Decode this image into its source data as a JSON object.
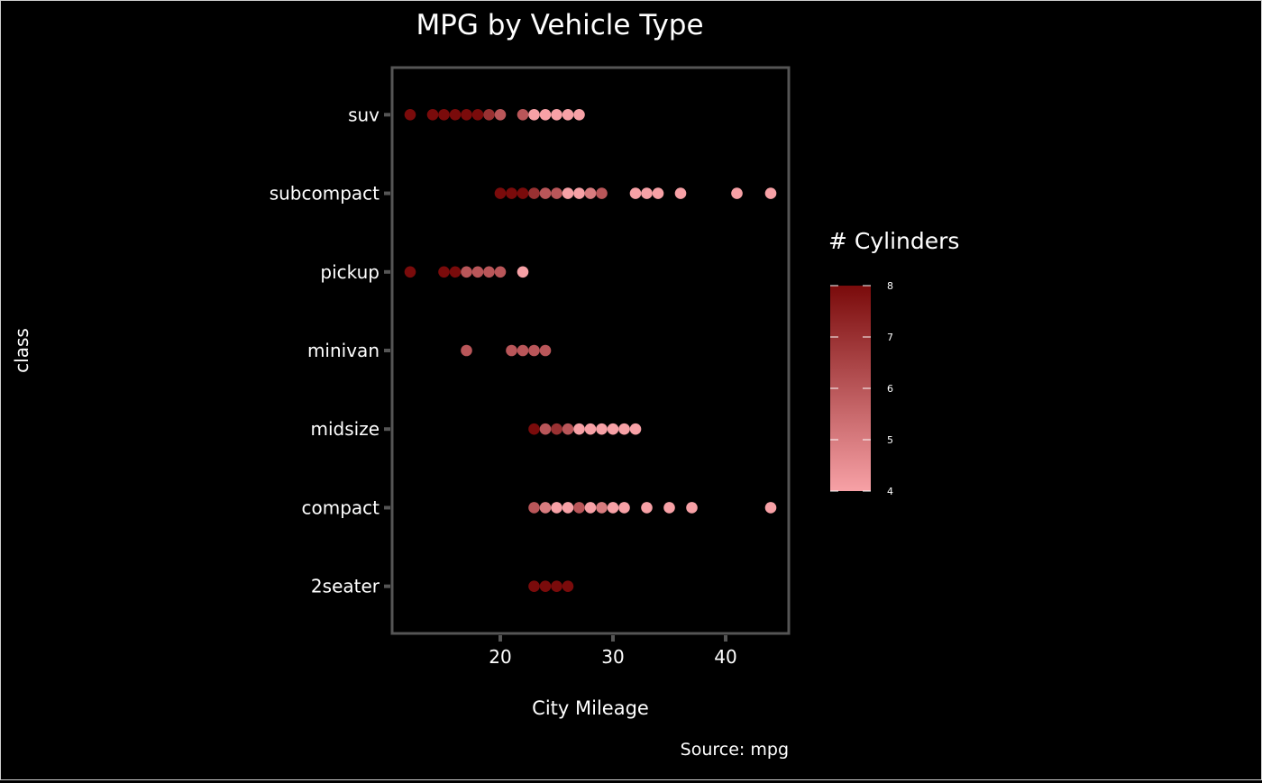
{
  "chart_data": {
    "type": "scatter",
    "title": "MPG by Vehicle Type",
    "caption": "Source: mpg",
    "xlabel": "City Mileage",
    "ylabel": "class",
    "xlim": [
      10.4,
      45.6
    ],
    "x_ticks": [
      20,
      30,
      40
    ],
    "categories": [
      "2seater",
      "compact",
      "midsize",
      "minivan",
      "pickup",
      "subcompact",
      "suv"
    ],
    "grid": false,
    "legend": {
      "title": "# Cylinders",
      "placement": "right",
      "range": [
        4,
        8
      ],
      "ticks": [
        4,
        5,
        6,
        7,
        8
      ],
      "low_color": "#f7a1a6",
      "high_color": "#7a0b0b"
    },
    "points": [
      {
        "class": "2seater",
        "x": 23,
        "cyl": 8
      },
      {
        "class": "2seater",
        "x": 24,
        "cyl": 8
      },
      {
        "class": "2seater",
        "x": 25,
        "cyl": 8
      },
      {
        "class": "2seater",
        "x": 26,
        "cyl": 8
      },
      {
        "class": "compact",
        "x": 23,
        "cyl": 6
      },
      {
        "class": "compact",
        "x": 24,
        "cyl": 5
      },
      {
        "class": "compact",
        "x": 25,
        "cyl": 4
      },
      {
        "class": "compact",
        "x": 26,
        "cyl": 4
      },
      {
        "class": "compact",
        "x": 27,
        "cyl": 6
      },
      {
        "class": "compact",
        "x": 28,
        "cyl": 4
      },
      {
        "class": "compact",
        "x": 29,
        "cyl": 5
      },
      {
        "class": "compact",
        "x": 30,
        "cyl": 4
      },
      {
        "class": "compact",
        "x": 31,
        "cyl": 4
      },
      {
        "class": "compact",
        "x": 33,
        "cyl": 4
      },
      {
        "class": "compact",
        "x": 35,
        "cyl": 4
      },
      {
        "class": "compact",
        "x": 37,
        "cyl": 4
      },
      {
        "class": "compact",
        "x": 44,
        "cyl": 4
      },
      {
        "class": "midsize",
        "x": 23,
        "cyl": 8
      },
      {
        "class": "midsize",
        "x": 24,
        "cyl": 6
      },
      {
        "class": "midsize",
        "x": 25,
        "cyl": 7
      },
      {
        "class": "midsize",
        "x": 26,
        "cyl": 6
      },
      {
        "class": "midsize",
        "x": 27,
        "cyl": 4
      },
      {
        "class": "midsize",
        "x": 28,
        "cyl": 4
      },
      {
        "class": "midsize",
        "x": 29,
        "cyl": 4
      },
      {
        "class": "midsize",
        "x": 30,
        "cyl": 4
      },
      {
        "class": "midsize",
        "x": 31,
        "cyl": 4
      },
      {
        "class": "midsize",
        "x": 32,
        "cyl": 4
      },
      {
        "class": "minivan",
        "x": 17,
        "cyl": 6
      },
      {
        "class": "minivan",
        "x": 21,
        "cyl": 6
      },
      {
        "class": "minivan",
        "x": 22,
        "cyl": 6
      },
      {
        "class": "minivan",
        "x": 23,
        "cyl": 6
      },
      {
        "class": "minivan",
        "x": 24,
        "cyl": 6
      },
      {
        "class": "pickup",
        "x": 12,
        "cyl": 8
      },
      {
        "class": "pickup",
        "x": 15,
        "cyl": 8
      },
      {
        "class": "pickup",
        "x": 16,
        "cyl": 8
      },
      {
        "class": "pickup",
        "x": 17,
        "cyl": 6
      },
      {
        "class": "pickup",
        "x": 18,
        "cyl": 6
      },
      {
        "class": "pickup",
        "x": 19,
        "cyl": 6
      },
      {
        "class": "pickup",
        "x": 20,
        "cyl": 6
      },
      {
        "class": "pickup",
        "x": 22,
        "cyl": 4
      },
      {
        "class": "subcompact",
        "x": 20,
        "cyl": 8
      },
      {
        "class": "subcompact",
        "x": 21,
        "cyl": 8
      },
      {
        "class": "subcompact",
        "x": 22,
        "cyl": 8
      },
      {
        "class": "subcompact",
        "x": 23,
        "cyl": 7
      },
      {
        "class": "subcompact",
        "x": 24,
        "cyl": 6
      },
      {
        "class": "subcompact",
        "x": 25,
        "cyl": 6
      },
      {
        "class": "subcompact",
        "x": 26,
        "cyl": 4
      },
      {
        "class": "subcompact",
        "x": 27,
        "cyl": 4
      },
      {
        "class": "subcompact",
        "x": 28,
        "cyl": 5
      },
      {
        "class": "subcompact",
        "x": 29,
        "cyl": 6
      },
      {
        "class": "subcompact",
        "x": 32,
        "cyl": 4
      },
      {
        "class": "subcompact",
        "x": 33,
        "cyl": 4
      },
      {
        "class": "subcompact",
        "x": 34,
        "cyl": 4
      },
      {
        "class": "subcompact",
        "x": 36,
        "cyl": 4
      },
      {
        "class": "subcompact",
        "x": 41,
        "cyl": 4
      },
      {
        "class": "subcompact",
        "x": 44,
        "cyl": 4
      },
      {
        "class": "suv",
        "x": 12,
        "cyl": 8
      },
      {
        "class": "suv",
        "x": 14,
        "cyl": 8
      },
      {
        "class": "suv",
        "x": 15,
        "cyl": 8
      },
      {
        "class": "suv",
        "x": 16,
        "cyl": 8
      },
      {
        "class": "suv",
        "x": 17,
        "cyl": 8
      },
      {
        "class": "suv",
        "x": 18,
        "cyl": 8
      },
      {
        "class": "suv",
        "x": 19,
        "cyl": 7
      },
      {
        "class": "suv",
        "x": 20,
        "cyl": 6
      },
      {
        "class": "suv",
        "x": 22,
        "cyl": 6
      },
      {
        "class": "suv",
        "x": 23,
        "cyl": 4
      },
      {
        "class": "suv",
        "x": 24,
        "cyl": 4
      },
      {
        "class": "suv",
        "x": 25,
        "cyl": 4
      },
      {
        "class": "suv",
        "x": 26,
        "cyl": 4
      },
      {
        "class": "suv",
        "x": 27,
        "cyl": 4
      }
    ]
  }
}
